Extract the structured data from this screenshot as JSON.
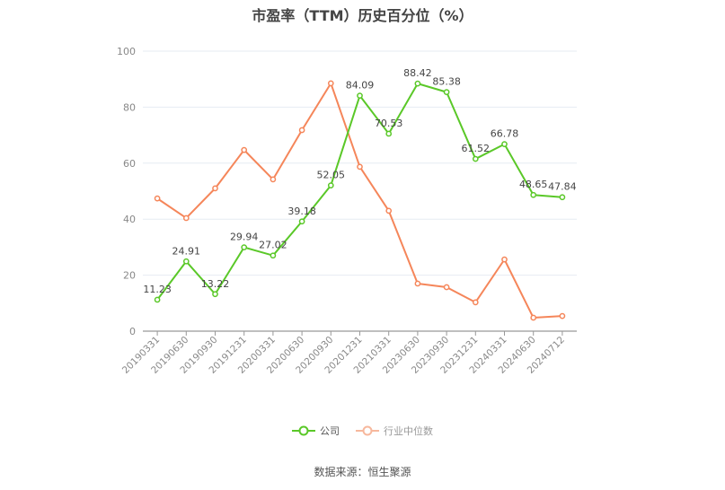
{
  "title": "市盈率（TTM）历史百分位（%）",
  "source": "数据来源：恒生聚源",
  "colors": {
    "company": "#5ac828",
    "industry": "#f5865a",
    "grid": "#e6ebf2",
    "axis": "#999999",
    "tick_text": "#888888",
    "label_text": "#444444"
  },
  "legend": [
    {
      "name": "公司",
      "color": "#5ac828",
      "icon": "circle-line-icon"
    },
    {
      "name": "行业中位数",
      "color": "#f7b89d",
      "icon": "circle-line-icon"
    }
  ],
  "chart_data": {
    "type": "line",
    "title": "市盈率（TTM）历史百分位（%）",
    "xlabel": "",
    "ylabel": "",
    "ylim": [
      0,
      100
    ],
    "yticks": [
      0,
      20,
      40,
      60,
      80,
      100
    ],
    "grid": true,
    "legend_position": "bottom",
    "categories": [
      "20190331",
      "20190630",
      "20190930",
      "20191231",
      "20200331",
      "20200630",
      "20200930",
      "20201231",
      "20210331",
      "20230630",
      "20230930",
      "20231231",
      "20240331",
      "20240630",
      "20240712"
    ],
    "series": [
      {
        "name": "公司",
        "color": "#5ac828",
        "show_labels": true,
        "values": [
          11.23,
          24.91,
          13.22,
          29.94,
          27.02,
          39.18,
          52.05,
          84.09,
          70.53,
          88.42,
          85.38,
          61.52,
          66.78,
          48.65,
          47.84
        ]
      },
      {
        "name": "行业中位数",
        "color": "#f5865a",
        "show_labels": false,
        "values": [
          47.4,
          40.4,
          51.0,
          64.7,
          54.2,
          71.8,
          88.5,
          58.7,
          43.0,
          17.0,
          15.7,
          10.3,
          25.6,
          4.8,
          5.4
        ]
      }
    ]
  }
}
